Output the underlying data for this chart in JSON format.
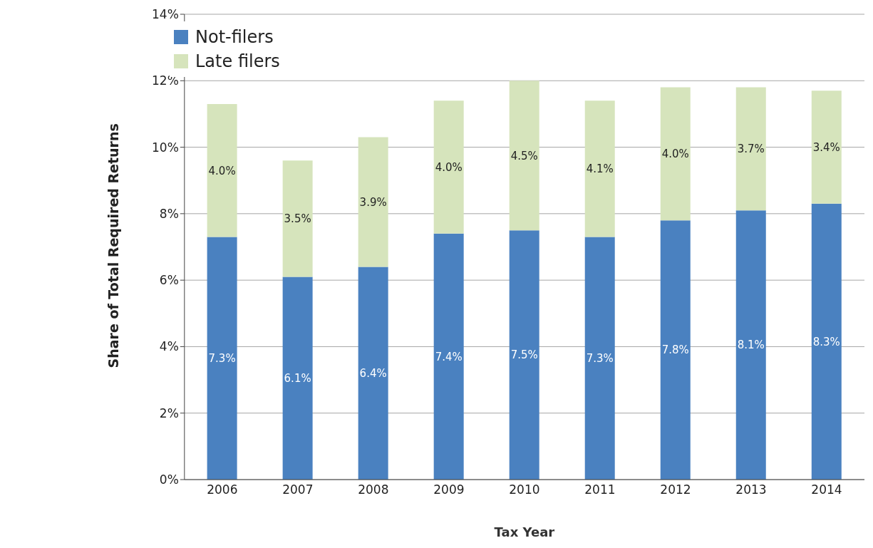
{
  "chart_data": {
    "type": "bar",
    "stacked": true,
    "xlabel": "Tax Year",
    "ylabel": "Share of Total Required Returns",
    "categories": [
      "2006",
      "2007",
      "2008",
      "2009",
      "2010",
      "2011",
      "2012",
      "2013",
      "2014"
    ],
    "series": [
      {
        "name": "Not-filers",
        "color": "#4a81c0",
        "values": [
          7.3,
          6.1,
          6.4,
          7.4,
          7.5,
          7.3,
          7.8,
          8.1,
          8.3
        ],
        "value_labels": [
          "7.3%",
          "6.1%",
          "6.4%",
          "7.4%",
          "7.5%",
          "7.3%",
          "7.8%",
          "8.1%",
          "8.3%"
        ]
      },
      {
        "name": "Late filers",
        "color": "#d6e4bc",
        "values": [
          4.0,
          3.5,
          3.9,
          4.0,
          4.5,
          4.1,
          4.0,
          3.7,
          3.4
        ],
        "value_labels": [
          "4.0%",
          "3.5%",
          "3.9%",
          "4.0%",
          "4.5%",
          "4.1%",
          "4.0%",
          "3.7%",
          "3.4%"
        ]
      }
    ],
    "ylim": [
      0,
      14
    ],
    "yticks": [
      {
        "value": 0,
        "label": "0%"
      },
      {
        "value": 2,
        "label": "2%"
      },
      {
        "value": 4,
        "label": "4%"
      },
      {
        "value": 6,
        "label": "6%"
      },
      {
        "value": 8,
        "label": "8%"
      },
      {
        "value": 10,
        "label": "10%"
      },
      {
        "value": 12,
        "label": "12%"
      },
      {
        "value": 14,
        "label": "14%"
      }
    ],
    "grid": "y",
    "legend": "top left"
  }
}
